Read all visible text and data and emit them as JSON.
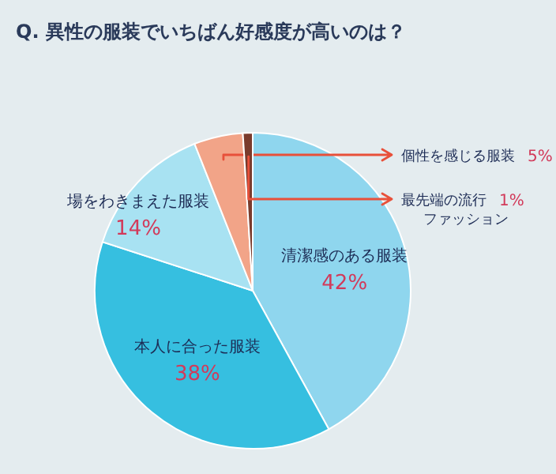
{
  "chart_data": {
    "type": "pie",
    "title": "Q. 異性の服装でいちばん好感度が高いのは？",
    "categories": [
      "清潔感のある服装",
      "本人に合った服装",
      "場をわきまえた服装",
      "個性を感じる服装",
      "最先端の流行ファッション"
    ],
    "values": [
      42,
      38,
      14,
      5,
      1
    ],
    "value_labels": [
      "42%",
      "38%",
      "14%",
      "5%",
      "1%"
    ],
    "colors": [
      "#8fd6ee",
      "#36bfe0",
      "#a8e2f2",
      "#f2a488",
      "#7a3b2c"
    ]
  }
}
